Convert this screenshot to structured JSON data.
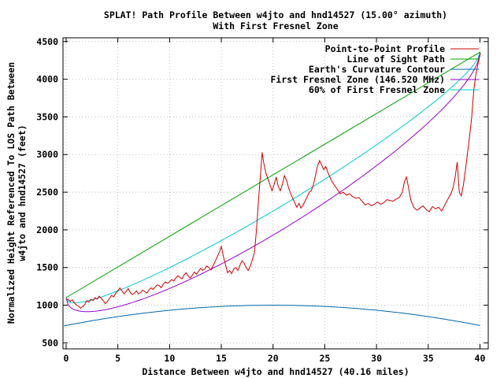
{
  "chart_data": {
    "type": "line",
    "title": "SPLAT! Path Profile Between w4jto and hnd14527 (15.00° azimuth)",
    "subtitle": "With First Fresnel Zone",
    "xlabel": "Distance Between w4jto and hnd14527 (40.16 miles)",
    "ylabel": "Normalized Height Referenced To LOS Path Between",
    "ylabel2": "w4jto and hnd14527 (feet)",
    "xlim": [
      -0.3,
      40.8
    ],
    "ylim": [
      420,
      4550
    ],
    "xticks": [
      0,
      5,
      10,
      15,
      20,
      25,
      30,
      35,
      40
    ],
    "yticks": [
      500,
      1000,
      1500,
      2000,
      2500,
      3000,
      3500,
      4000,
      4500
    ],
    "grid": true,
    "legend_position": "top-right",
    "series": [
      {
        "name": "Point-to-Point Profile",
        "color": "#cc0000",
        "points": [
          [
            0,
            1090
          ],
          [
            0.2,
            1075
          ],
          [
            0.4,
            1050
          ],
          [
            0.6,
            1070
          ],
          [
            0.8,
            1030
          ],
          [
            1,
            1000
          ],
          [
            1.2,
            985
          ],
          [
            1.4,
            960
          ],
          [
            1.6,
            980
          ],
          [
            1.8,
            1010
          ],
          [
            2,
            1060
          ],
          [
            2.2,
            1040
          ],
          [
            2.4,
            1080
          ],
          [
            2.6,
            1060
          ],
          [
            2.8,
            1100
          ],
          [
            3,
            1080
          ],
          [
            3.2,
            1120
          ],
          [
            3.4,
            1090
          ],
          [
            3.6,
            1060
          ],
          [
            3.8,
            1020
          ],
          [
            4,
            1050
          ],
          [
            4.2,
            1090
          ],
          [
            4.4,
            1130
          ],
          [
            4.6,
            1110
          ],
          [
            4.8,
            1160
          ],
          [
            5,
            1190
          ],
          [
            5.2,
            1230
          ],
          [
            5.4,
            1190
          ],
          [
            5.6,
            1150
          ],
          [
            5.8,
            1180
          ],
          [
            6,
            1220
          ],
          [
            6.2,
            1170
          ],
          [
            6.4,
            1140
          ],
          [
            6.6,
            1160
          ],
          [
            6.8,
            1190
          ],
          [
            7,
            1150
          ],
          [
            7.2,
            1170
          ],
          [
            7.4,
            1200
          ],
          [
            7.6,
            1180
          ],
          [
            7.8,
            1160
          ],
          [
            8,
            1200
          ],
          [
            8.2,
            1230
          ],
          [
            8.4,
            1210
          ],
          [
            8.6,
            1240
          ],
          [
            8.8,
            1270
          ],
          [
            9,
            1260
          ],
          [
            9.2,
            1230
          ],
          [
            9.4,
            1280
          ],
          [
            9.6,
            1310
          ],
          [
            9.8,
            1290
          ],
          [
            10,
            1310
          ],
          [
            10.2,
            1340
          ],
          [
            10.4,
            1320
          ],
          [
            10.6,
            1360
          ],
          [
            10.8,
            1390
          ],
          [
            11,
            1370
          ],
          [
            11.2,
            1350
          ],
          [
            11.4,
            1400
          ],
          [
            11.6,
            1430
          ],
          [
            11.8,
            1390
          ],
          [
            12,
            1360
          ],
          [
            12.2,
            1400
          ],
          [
            12.4,
            1440
          ],
          [
            12.6,
            1410
          ],
          [
            12.8,
            1450
          ],
          [
            13,
            1490
          ],
          [
            13.2,
            1460
          ],
          [
            13.4,
            1480
          ],
          [
            13.6,
            1520
          ],
          [
            13.8,
            1500
          ],
          [
            14,
            1470
          ],
          [
            14.2,
            1520
          ],
          [
            14.4,
            1580
          ],
          [
            14.6,
            1640
          ],
          [
            14.8,
            1700
          ],
          [
            15,
            1780
          ],
          [
            15.2,
            1650
          ],
          [
            15.4,
            1540
          ],
          [
            15.6,
            1430
          ],
          [
            15.8,
            1460
          ],
          [
            16,
            1420
          ],
          [
            16.2,
            1480
          ],
          [
            16.4,
            1500
          ],
          [
            16.6,
            1460
          ],
          [
            16.8,
            1530
          ],
          [
            17,
            1590
          ],
          [
            17.2,
            1560
          ],
          [
            17.4,
            1500
          ],
          [
            17.6,
            1460
          ],
          [
            17.8,
            1520
          ],
          [
            18,
            1600
          ],
          [
            18.2,
            1700
          ],
          [
            18.4,
            2000
          ],
          [
            18.6,
            2400
          ],
          [
            18.8,
            2750
          ],
          [
            18.95,
            3030
          ],
          [
            19.1,
            2890
          ],
          [
            19.3,
            2760
          ],
          [
            19.5,
            2680
          ],
          [
            19.7,
            2600
          ],
          [
            19.9,
            2520
          ],
          [
            20.1,
            2600
          ],
          [
            20.3,
            2700
          ],
          [
            20.5,
            2580
          ],
          [
            20.7,
            2520
          ],
          [
            20.9,
            2600
          ],
          [
            21.1,
            2720
          ],
          [
            21.3,
            2660
          ],
          [
            21.5,
            2560
          ],
          [
            21.7,
            2480
          ],
          [
            21.9,
            2420
          ],
          [
            22.1,
            2360
          ],
          [
            22.3,
            2300
          ],
          [
            22.5,
            2350
          ],
          [
            22.7,
            2290
          ],
          [
            22.9,
            2330
          ],
          [
            23.1,
            2380
          ],
          [
            23.3,
            2440
          ],
          [
            23.5,
            2500
          ],
          [
            23.7,
            2520
          ],
          [
            23.9,
            2600
          ],
          [
            24.1,
            2720
          ],
          [
            24.3,
            2850
          ],
          [
            24.5,
            2920
          ],
          [
            24.7,
            2860
          ],
          [
            24.9,
            2800
          ],
          [
            25.1,
            2840
          ],
          [
            25.3,
            2760
          ],
          [
            25.5,
            2700
          ],
          [
            25.7,
            2640
          ],
          [
            25.9,
            2600
          ],
          [
            26.1,
            2560
          ],
          [
            26.3,
            2520
          ],
          [
            26.5,
            2480
          ],
          [
            26.8,
            2500
          ],
          [
            27.1,
            2460
          ],
          [
            27.4,
            2480
          ],
          [
            27.7,
            2440
          ],
          [
            28,
            2420
          ],
          [
            28.3,
            2430
          ],
          [
            28.6,
            2380
          ],
          [
            28.9,
            2330
          ],
          [
            29.2,
            2350
          ],
          [
            29.5,
            2320
          ],
          [
            29.8,
            2340
          ],
          [
            30.1,
            2370
          ],
          [
            30.4,
            2340
          ],
          [
            30.7,
            2360
          ],
          [
            31,
            2400
          ],
          [
            31.3,
            2390
          ],
          [
            31.6,
            2380
          ],
          [
            31.9,
            2410
          ],
          [
            32.2,
            2430
          ],
          [
            32.5,
            2500
          ],
          [
            32.7,
            2640
          ],
          [
            32.9,
            2700
          ],
          [
            33.1,
            2560
          ],
          [
            33.3,
            2400
          ],
          [
            33.6,
            2300
          ],
          [
            33.9,
            2260
          ],
          [
            34.2,
            2290
          ],
          [
            34.5,
            2320
          ],
          [
            34.8,
            2270
          ],
          [
            35.1,
            2240
          ],
          [
            35.4,
            2310
          ],
          [
            35.7,
            2280
          ],
          [
            36,
            2300
          ],
          [
            36.3,
            2250
          ],
          [
            36.6,
            2330
          ],
          [
            36.9,
            2410
          ],
          [
            37.2,
            2480
          ],
          [
            37.4,
            2560
          ],
          [
            37.6,
            2700
          ],
          [
            37.8,
            2900
          ],
          [
            38,
            2500
          ],
          [
            38.2,
            2450
          ],
          [
            38.4,
            2600
          ],
          [
            38.6,
            2800
          ],
          [
            38.8,
            3020
          ],
          [
            39,
            3250
          ],
          [
            39.2,
            3500
          ],
          [
            39.4,
            3850
          ],
          [
            39.6,
            4060
          ],
          [
            39.8,
            4200
          ],
          [
            40.05,
            4350
          ]
        ]
      },
      {
        "name": "Line of Sight Path",
        "color": "#00a000"
      },
      {
        "name": "Earth's Curvature Contour",
        "color": "#0066aa"
      },
      {
        "name": "First Fresnel Zone (146.520 MHz)",
        "color": "#9900cc"
      },
      {
        "name": "60% of First Fresnel Zone",
        "color": "#00cccc"
      }
    ]
  }
}
